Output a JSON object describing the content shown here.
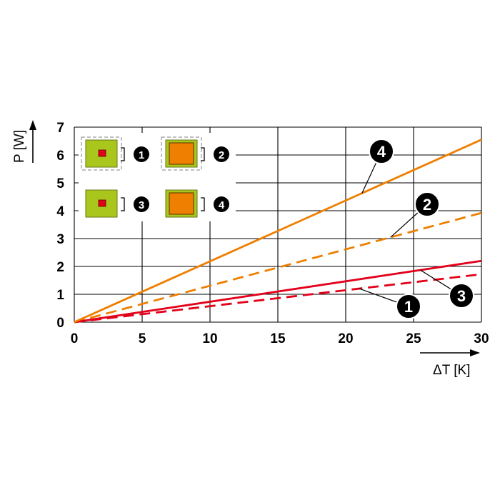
{
  "chart_data": {
    "type": "line",
    "xlabel": "ΔT [K]",
    "ylabel": "P [W]",
    "xlim": [
      0,
      30
    ],
    "ylim": [
      0,
      7
    ],
    "x_ticks": [
      "0",
      "5",
      "10",
      "15",
      "20",
      "25",
      "30"
    ],
    "y_ticks": [
      "0",
      "1",
      "2",
      "3",
      "4",
      "5",
      "6",
      "7"
    ],
    "grid": true,
    "series": [
      {
        "name": "1",
        "style": "dashed",
        "color": "#e2001a",
        "x": [
          0,
          30
        ],
        "y": [
          0,
          1.72
        ]
      },
      {
        "name": "2",
        "style": "dashed",
        "color": "#ee7f00",
        "x": [
          0,
          30
        ],
        "y": [
          0,
          3.92
        ]
      },
      {
        "name": "3",
        "style": "solid",
        "color": "#e2001a",
        "x": [
          0,
          30
        ],
        "y": [
          0,
          2.2
        ]
      },
      {
        "name": "4",
        "style": "solid",
        "color": "#ee7f00",
        "x": [
          0,
          30
        ],
        "y": [
          0,
          6.55
        ]
      }
    ],
    "legend": {
      "placement": "top-left",
      "items": [
        {
          "label": "1",
          "body_color": "#a8c61c",
          "inner_color": "#e2001a",
          "inner": "small",
          "dashed_outline": true
        },
        {
          "label": "2",
          "body_color": "#a8c61c",
          "inner_color": "#ee7f00",
          "inner": "large",
          "dashed_outline": true
        },
        {
          "label": "3",
          "body_color": "#a8c61c",
          "inner_color": "#e2001a",
          "inner": "small",
          "dashed_outline": false
        },
        {
          "label": "4",
          "body_color": "#a8c61c",
          "inner_color": "#ee7f00",
          "inner": "large",
          "dashed_outline": false
        }
      ]
    },
    "callouts": [
      {
        "label": "4",
        "series": "4",
        "anchor_x": 21.2
      },
      {
        "label": "2",
        "series": "2",
        "anchor_x": 23.3
      },
      {
        "label": "3",
        "series": "3",
        "anchor_x": 25.5
      },
      {
        "label": "1",
        "series": "1",
        "anchor_x": 21.0
      }
    ]
  }
}
